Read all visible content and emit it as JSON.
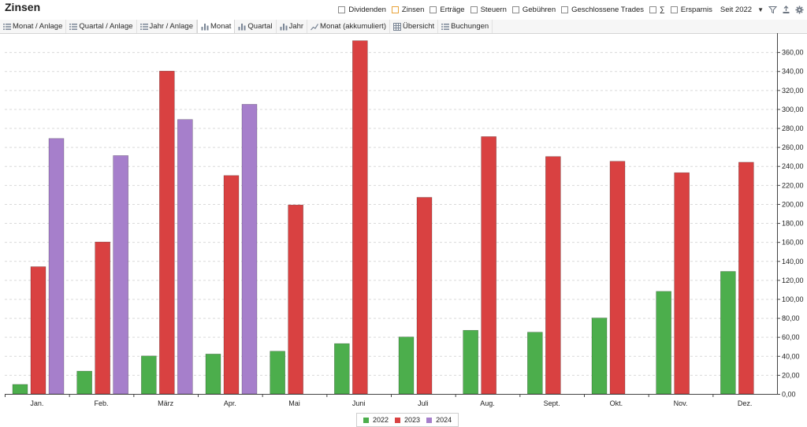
{
  "header": {
    "title": "Zinsen",
    "filters": [
      {
        "label": "Dividenden",
        "checked": false
      },
      {
        "label": "Zinsen",
        "checked": true
      },
      {
        "label": "Erträge",
        "checked": false
      },
      {
        "label": "Steuern",
        "checked": false
      },
      {
        "label": "Gebühren",
        "checked": false
      },
      {
        "label": "Geschlossene Trades",
        "checked": false
      },
      {
        "label": "∑",
        "checked": false
      },
      {
        "label": "Ersparnis",
        "checked": false
      }
    ],
    "since_label": "Seit 2022",
    "icons": [
      "filter-icon",
      "export-icon",
      "settings-icon"
    ]
  },
  "tabs": [
    {
      "label": "Monat / Anlage",
      "icon": "list-icon",
      "active": false
    },
    {
      "label": "Quartal / Anlage",
      "icon": "list-icon",
      "active": false
    },
    {
      "label": "Jahr / Anlage",
      "icon": "list-icon",
      "active": false
    },
    {
      "label": "Monat",
      "icon": "bar-chart-icon",
      "active": true
    },
    {
      "label": "Quartal",
      "icon": "bar-chart-icon",
      "active": false
    },
    {
      "label": "Jahr",
      "icon": "bar-chart-icon",
      "active": false
    },
    {
      "label": "Monat (akkumuliert)",
      "icon": "line-chart-icon",
      "active": false
    },
    {
      "label": "Übersicht",
      "icon": "table-icon",
      "active": false
    },
    {
      "label": "Buchungen",
      "icon": "list-icon",
      "active": false
    }
  ],
  "chart_data": {
    "type": "bar",
    "title": "",
    "xlabel": "",
    "ylabel": "",
    "categories": [
      "Jan.",
      "Feb.",
      "März",
      "Apr.",
      "Mai",
      "Juni",
      "Juli",
      "Aug.",
      "Sept.",
      "Okt.",
      "Nov.",
      "Dez."
    ],
    "series": [
      {
        "name": "2022",
        "color": "#4cae4c",
        "values": [
          10,
          24,
          40,
          42,
          45,
          53,
          60,
          67,
          65,
          80,
          108,
          129
        ]
      },
      {
        "name": "2023",
        "color": "#d94141",
        "values": [
          134,
          160,
          340,
          230,
          199,
          372,
          207,
          271,
          250,
          245,
          233,
          244
        ]
      },
      {
        "name": "2024",
        "color": "#a67fcb",
        "values": [
          269,
          251,
          289,
          305,
          null,
          null,
          null,
          null,
          null,
          null,
          null,
          null
        ]
      }
    ],
    "ylim": [
      0,
      380
    ],
    "yticks": [
      0,
      20,
      40,
      60,
      80,
      100,
      120,
      140,
      160,
      180,
      200,
      220,
      240,
      260,
      280,
      300,
      320,
      340,
      360
    ],
    "ytick_labels": [
      "0,00",
      "20,00",
      "40,00",
      "60,00",
      "80,00",
      "100,00",
      "120,00",
      "140,00",
      "160,00",
      "180,00",
      "200,00",
      "220,00",
      "240,00",
      "260,00",
      "280,00",
      "300,00",
      "320,00",
      "340,00",
      "360,00"
    ],
    "grid": true,
    "y_axis_side": "right",
    "legend_position": "bottom-center"
  }
}
